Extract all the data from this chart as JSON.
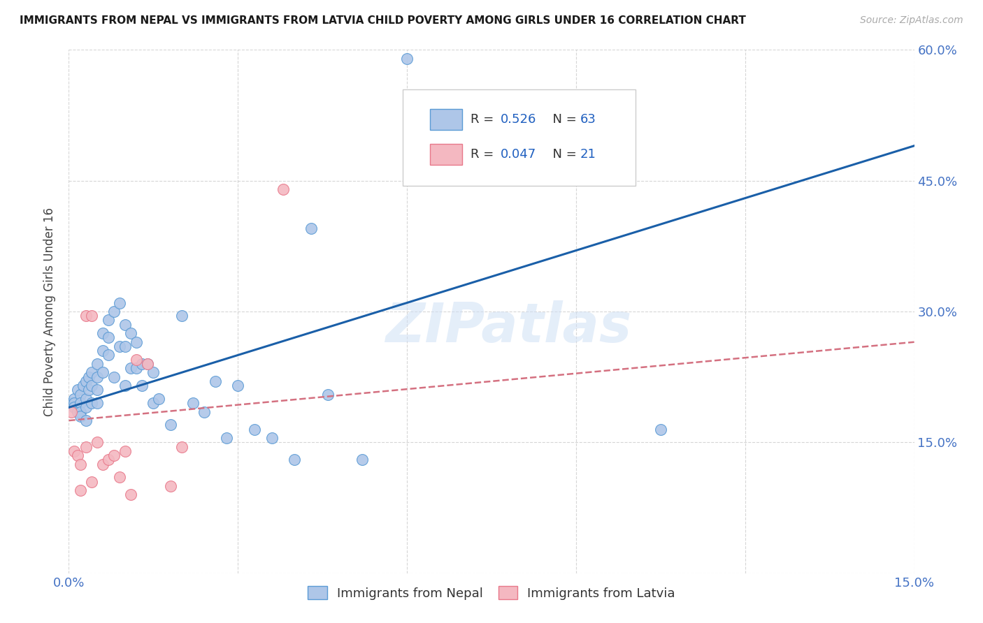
{
  "title": "IMMIGRANTS FROM NEPAL VS IMMIGRANTS FROM LATVIA CHILD POVERTY AMONG GIRLS UNDER 16 CORRELATION CHART",
  "source": "Source: ZipAtlas.com",
  "ylabel": "Child Poverty Among Girls Under 16",
  "xlim": [
    0,
    0.15
  ],
  "ylim": [
    0,
    0.6
  ],
  "nepal_color": "#aec6e8",
  "nepal_edge_color": "#5b9bd5",
  "latvia_color": "#f4b8c1",
  "latvia_edge_color": "#e8788a",
  "nepal_R": 0.526,
  "nepal_N": 63,
  "latvia_R": 0.047,
  "latvia_N": 21,
  "nepal_line_color": "#1a5fa8",
  "latvia_line_color": "#d47080",
  "watermark": "ZIPatlas",
  "legend_color": "#2060c0",
  "nepal_scatter_x": [
    0.0005,
    0.001,
    0.001,
    0.001,
    0.0015,
    0.0015,
    0.002,
    0.002,
    0.002,
    0.002,
    0.0025,
    0.003,
    0.003,
    0.003,
    0.003,
    0.0035,
    0.0035,
    0.004,
    0.004,
    0.004,
    0.005,
    0.005,
    0.005,
    0.005,
    0.006,
    0.006,
    0.006,
    0.007,
    0.007,
    0.007,
    0.008,
    0.008,
    0.009,
    0.009,
    0.01,
    0.01,
    0.01,
    0.011,
    0.011,
    0.012,
    0.012,
    0.013,
    0.013,
    0.014,
    0.015,
    0.015,
    0.016,
    0.018,
    0.02,
    0.022,
    0.024,
    0.026,
    0.028,
    0.03,
    0.033,
    0.036,
    0.04,
    0.043,
    0.046,
    0.052,
    0.06,
    0.09,
    0.105
  ],
  "nepal_scatter_y": [
    0.195,
    0.2,
    0.195,
    0.19,
    0.21,
    0.185,
    0.205,
    0.195,
    0.185,
    0.18,
    0.215,
    0.22,
    0.2,
    0.19,
    0.175,
    0.225,
    0.21,
    0.23,
    0.215,
    0.195,
    0.24,
    0.225,
    0.21,
    0.195,
    0.275,
    0.255,
    0.23,
    0.29,
    0.27,
    0.25,
    0.3,
    0.225,
    0.31,
    0.26,
    0.285,
    0.26,
    0.215,
    0.275,
    0.235,
    0.265,
    0.235,
    0.24,
    0.215,
    0.24,
    0.23,
    0.195,
    0.2,
    0.17,
    0.295,
    0.195,
    0.185,
    0.22,
    0.155,
    0.215,
    0.165,
    0.155,
    0.13,
    0.395,
    0.205,
    0.13,
    0.59,
    0.46,
    0.165
  ],
  "latvia_scatter_x": [
    0.0005,
    0.001,
    0.0015,
    0.002,
    0.002,
    0.003,
    0.003,
    0.004,
    0.004,
    0.005,
    0.006,
    0.007,
    0.008,
    0.009,
    0.01,
    0.011,
    0.012,
    0.014,
    0.018,
    0.02,
    0.038
  ],
  "latvia_scatter_y": [
    0.185,
    0.14,
    0.135,
    0.125,
    0.095,
    0.295,
    0.145,
    0.295,
    0.105,
    0.15,
    0.125,
    0.13,
    0.135,
    0.11,
    0.14,
    0.09,
    0.245,
    0.24,
    0.1,
    0.145,
    0.44
  ],
  "nepal_line_x0": 0.0,
  "nepal_line_y0": 0.19,
  "nepal_line_x1": 0.15,
  "nepal_line_y1": 0.49,
  "latvia_line_x0": 0.0,
  "latvia_line_y0": 0.175,
  "latvia_line_x1": 0.15,
  "latvia_line_y1": 0.265
}
